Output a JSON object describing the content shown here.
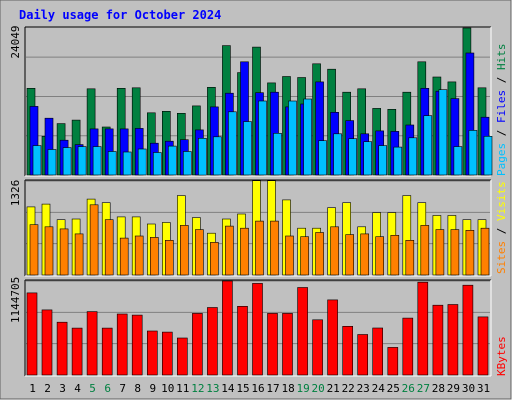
{
  "title": "Daily usage for October 2024",
  "chart_data": [
    {
      "type": "bar",
      "panel": "hits-files-pages",
      "categories": [
        "1",
        "2",
        "3",
        "4",
        "5",
        "6",
        "7",
        "8",
        "9",
        "10",
        "11",
        "12",
        "13",
        "14",
        "15",
        "16",
        "17",
        "18",
        "19",
        "20",
        "21",
        "22",
        "23",
        "24",
        "25",
        "26",
        "27",
        "28",
        "29",
        "30",
        "31"
      ],
      "weekend_categories": [
        "5",
        "6",
        "12",
        "13",
        "19",
        "20",
        "26",
        "27"
      ],
      "y_tick_label": "24049",
      "y_tick_value": 24049,
      "ylim": [
        0,
        30000
      ],
      "grid": true,
      "series": [
        {
          "name": "Hits",
          "color": "#008040",
          "values": [
            17700,
            7900,
            10500,
            11200,
            17600,
            9800,
            17700,
            17800,
            12700,
            13000,
            12600,
            14100,
            17900,
            26400,
            20900,
            26100,
            18800,
            20100,
            19900,
            22700,
            21600,
            16900,
            17600,
            13600,
            13400,
            16900,
            23100,
            20000,
            19000,
            30000,
            17800
          ]
        },
        {
          "name": "Files",
          "color": "#0000ff",
          "values": [
            14000,
            11600,
            7100,
            6200,
            9400,
            9400,
            9400,
            9500,
            6500,
            6900,
            7200,
            9200,
            13900,
            16700,
            23100,
            16800,
            16900,
            13900,
            14500,
            19000,
            12800,
            11100,
            8400,
            9000,
            8900,
            10200,
            17700,
            17100,
            15600,
            24900,
            11800
          ]
        },
        {
          "name": "Pages",
          "color": "#00c0ff",
          "values": [
            6000,
            5200,
            5600,
            5800,
            5800,
            4800,
            4700,
            5300,
            4600,
            5900,
            4800,
            7500,
            7800,
            12900,
            10900,
            15100,
            8500,
            15100,
            15500,
            7000,
            8400,
            7400,
            6800,
            6000,
            5700,
            7600,
            12100,
            17400,
            5800,
            9100,
            7900
          ]
        }
      ]
    },
    {
      "type": "bar",
      "panel": "visits-sites",
      "categories": [
        "1",
        "2",
        "3",
        "4",
        "5",
        "6",
        "7",
        "8",
        "9",
        "10",
        "11",
        "12",
        "13",
        "14",
        "15",
        "16",
        "17",
        "18",
        "19",
        "20",
        "21",
        "22",
        "23",
        "24",
        "25",
        "26",
        "27",
        "28",
        "29",
        "30",
        "31"
      ],
      "y_tick_label": "1326",
      "y_tick_value": 1326,
      "ylim": [
        0,
        1326
      ],
      "grid": true,
      "series": [
        {
          "name": "Visits",
          "color": "#ffff00",
          "values": [
            960,
            1000,
            780,
            790,
            1070,
            1020,
            820,
            820,
            720,
            740,
            1120,
            810,
            590,
            790,
            860,
            1330,
            1330,
            1060,
            660,
            660,
            950,
            1020,
            680,
            880,
            880,
            1120,
            1020,
            840,
            840,
            780,
            780
          ]
        },
        {
          "name": "Sites",
          "color": "#ff8000",
          "values": [
            710,
            680,
            650,
            580,
            990,
            780,
            520,
            550,
            530,
            490,
            700,
            640,
            460,
            690,
            660,
            760,
            760,
            550,
            540,
            600,
            680,
            570,
            580,
            540,
            560,
            490,
            700,
            640,
            640,
            630,
            660
          ]
        }
      ]
    },
    {
      "type": "bar",
      "panel": "kbytes",
      "categories": [
        "1",
        "2",
        "3",
        "4",
        "5",
        "6",
        "7",
        "8",
        "9",
        "10",
        "11",
        "12",
        "13",
        "14",
        "15",
        "16",
        "17",
        "18",
        "19",
        "20",
        "21",
        "22",
        "23",
        "24",
        "25",
        "26",
        "27",
        "28",
        "29",
        "30",
        "31"
      ],
      "y_tick_label": "1144705",
      "y_tick_value": 1144705,
      "ylim": [
        0,
        1144705
      ],
      "grid": true,
      "series": [
        {
          "name": "KBytes",
          "color": "#ff0000",
          "values": [
            1000000,
            793000,
            643000,
            571000,
            772000,
            571000,
            743000,
            729000,
            536000,
            522000,
            450000,
            750000,
            822000,
            1144700,
            836000,
            1115000,
            750000,
            750000,
            1065000,
            672000,
            915000,
            593000,
            493000,
            572000,
            336000,
            693000,
            1130000,
            850000,
            858000,
            1093000,
            708000
          ]
        }
      ]
    }
  ]
}
